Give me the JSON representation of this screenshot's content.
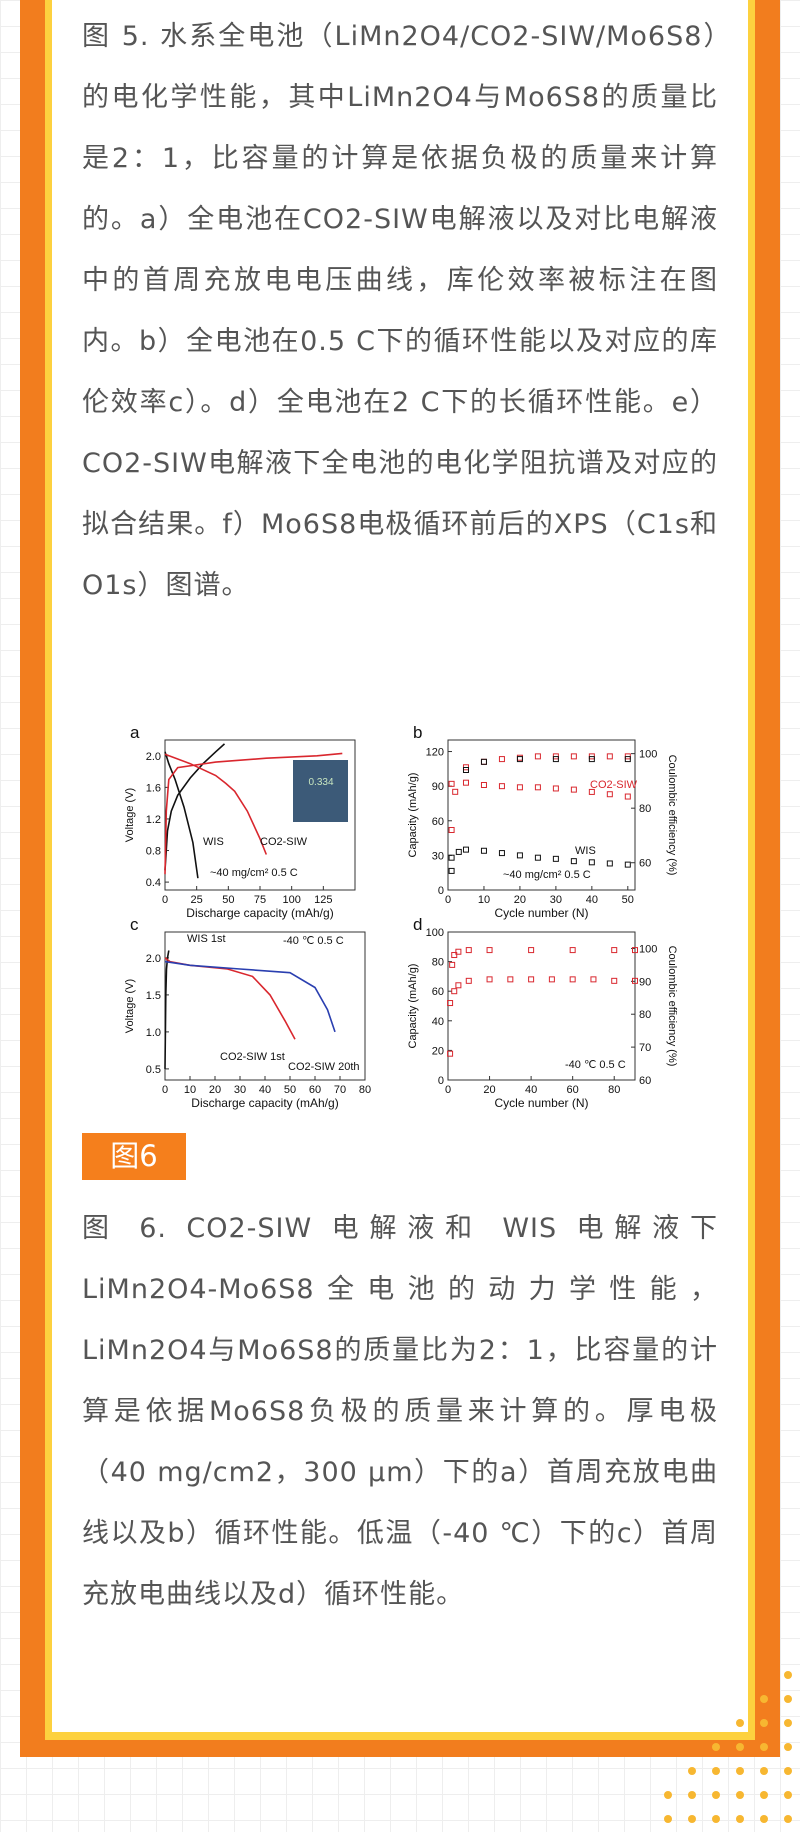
{
  "paragraphs": {
    "fig5_caption": "图 5. 水系全电池（LiMn2O4/CO2-SIW/Mo6S8）的电化学性能，其中LiMn2O4与Mo6S8的质量比是2：1，比容量的计算是依据负极的质量来计算的。a）全电池在CO2-SIW电解液以及对比电解液中的首周充放电电压曲线，库伦效率被标注在图内。b）全电池在0.5 C下的循环性能以及对应的库伦效率c）。d）全电池在2 C下的长循环性能。e）CO2-SIW电解液下全电池的电化学阻抗谱及对应的拟合结果。f）Mo6S8电极循环前后的XPS（C1s和O1s）图谱。",
    "fig6_caption": "图 6. CO2-SIW 电解液和 WIS 电解液下 LiMn2O4-Mo6S8全电池的动力学性能，LiMn2O4与Mo6S8的质量比为2：1，比容量的计算是依据Mo6S8负极的质量来计算的。厚电极（40 mg/cm2，300 μm）下的a）首周充放电曲线以及b）循环性能。低温（-40 ℃）下的c）首周充放电曲线以及d）循环性能。"
  },
  "figure_tag": "图6",
  "colors": {
    "orange": "#f27d1e",
    "yellow": "#fdd13f",
    "red_series": "#d9272e",
    "black_series": "#111111",
    "blue_series": "#2a3fb0"
  },
  "chart_data": [
    {
      "type": "line",
      "panel": "a",
      "xlabel": "Discharge capacity (mAh/g)",
      "ylabel": "Voltage (V)",
      "xlim": [
        0,
        150
      ],
      "ylim": [
        0.3,
        2.2
      ],
      "xticks": [
        "0",
        "25",
        "50",
        "75",
        "100",
        "125"
      ],
      "yticks": [
        "0.4",
        "0.8",
        "1.2",
        "1.6",
        "2.0"
      ],
      "series": [
        {
          "name": "WIS",
          "color": "black",
          "charge": {
            "x": [
              0,
              2,
              5,
              10,
              20,
              30,
              40,
              47
            ],
            "y": [
              0.55,
              1.05,
              1.3,
              1.5,
              1.72,
              1.9,
              2.05,
              2.15
            ]
          },
          "discharge": {
            "x": [
              0,
              3,
              8,
              15,
              22,
              26
            ],
            "y": [
              2.05,
              1.9,
              1.7,
              1.35,
              0.9,
              0.45
            ]
          }
        },
        {
          "name": "CO2-SIW",
          "color": "red",
          "charge": {
            "x": [
              0,
              1,
              3,
              10,
              40,
              80,
              120,
              140
            ],
            "y": [
              0.5,
              1.3,
              1.7,
              1.85,
              1.92,
              1.97,
              2.0,
              2.03
            ]
          },
          "discharge": {
            "x": [
              0,
              20,
              40,
              48,
              55,
              65,
              75,
              80
            ],
            "y": [
              2.02,
              1.9,
              1.75,
              1.65,
              1.55,
              1.3,
              0.95,
              0.75
            ]
          }
        }
      ],
      "labels": [
        "WIS",
        "CO2-SIW"
      ],
      "annotation": "~40 mg/cm² 0.5 C",
      "inset_text": "0.334"
    },
    {
      "type": "scatter",
      "panel": "b",
      "xlabel": "Cycle number (N)",
      "ylabel": "Capacity (mAh/g)",
      "y2label": "Coulombic efficiency (%)",
      "xlim": [
        0,
        52
      ],
      "ylim": [
        0,
        130
      ],
      "y2lim": [
        50,
        105
      ],
      "xticks": [
        "0",
        "10",
        "20",
        "30",
        "40",
        "50"
      ],
      "yticks": [
        "0",
        "30",
        "60",
        "90",
        "120"
      ],
      "y2ticks": [
        "60",
        "80",
        "100"
      ],
      "series": [
        {
          "name": "CO2-SIW",
          "axis": "capacity",
          "color": "red",
          "x": [
            1,
            5,
            10,
            15,
            20,
            25,
            30,
            35,
            40,
            45,
            50
          ],
          "y": [
            92,
            93,
            91,
            90,
            89,
            89,
            88,
            87,
            85,
            83,
            81
          ]
        },
        {
          "name": "CO2-SIW",
          "axis": "efficiency",
          "color": "red",
          "x": [
            1,
            2,
            5,
            10,
            15,
            20,
            25,
            30,
            35,
            40,
            45,
            50
          ],
          "y": [
            72,
            86,
            95,
            97,
            98,
            98.5,
            99,
            99,
            99,
            99,
            99,
            99
          ]
        },
        {
          "name": "WIS",
          "axis": "capacity",
          "color": "black",
          "x": [
            1,
            3,
            5,
            10,
            15,
            20,
            25,
            30,
            35,
            40,
            45,
            50
          ],
          "y": [
            28,
            33,
            35,
            34,
            32,
            30,
            28,
            27,
            25,
            24,
            23,
            22
          ]
        },
        {
          "name": "WIS",
          "axis": "efficiency",
          "color": "black",
          "x": [
            1,
            5,
            10,
            20,
            30,
            40,
            50
          ],
          "y": [
            57,
            94,
            97,
            98,
            98,
            98,
            98
          ]
        }
      ],
      "labels": [
        "CO2-SIW",
        "WIS"
      ],
      "annotation": "~40 mg/cm² 0.5 C"
    },
    {
      "type": "line",
      "panel": "c",
      "xlabel": "Discharge capacity (mAh/g)",
      "ylabel": "Voltage (V)",
      "xlim": [
        0,
        80
      ],
      "ylim": [
        0.35,
        2.35
      ],
      "xticks": [
        "0",
        "10",
        "20",
        "30",
        "40",
        "50",
        "60",
        "70",
        "80"
      ],
      "yticks": [
        "0.5",
        "1.0",
        "1.5",
        "2.0"
      ],
      "series": [
        {
          "name": "WIS 1st",
          "color": "black",
          "x": [
            0,
            0.3,
            0.6,
            1,
            1.5
          ],
          "y": [
            0.5,
            1.5,
            1.85,
            2.0,
            2.1
          ]
        },
        {
          "name": "CO2-SIW 1st",
          "color": "red",
          "x": [
            0,
            2,
            10,
            25,
            35,
            42,
            48,
            52
          ],
          "y": [
            2.0,
            1.95,
            1.9,
            1.85,
            1.75,
            1.5,
            1.15,
            0.9
          ]
        },
        {
          "name": "CO2-SIW 20th",
          "color": "blue",
          "x": [
            0,
            10,
            30,
            50,
            60,
            65,
            68
          ],
          "y": [
            1.95,
            1.9,
            1.85,
            1.8,
            1.6,
            1.3,
            1.0
          ]
        }
      ],
      "labels": [
        "WIS 1st",
        "CO2-SIW 1st",
        "CO2-SIW 20th"
      ],
      "annotation": "-40 ℃ 0.5 C"
    },
    {
      "type": "scatter",
      "panel": "d",
      "xlabel": "Cycle number (N)",
      "ylabel": "Capacity (mAh/g)",
      "y2label": "Coulombic efficiency (%)",
      "xlim": [
        0,
        90
      ],
      "ylim": [
        0,
        100
      ],
      "y2lim": [
        60,
        105
      ],
      "xticks": [
        "0",
        "20",
        "40",
        "60",
        "80"
      ],
      "yticks": [
        "0",
        "20",
        "40",
        "60",
        "80",
        "100"
      ],
      "y2ticks": [
        "60",
        "70",
        "80",
        "90",
        "100"
      ],
      "series": [
        {
          "name": "CO2-SIW",
          "axis": "capacity",
          "color": "red",
          "x": [
            1,
            3,
            5,
            10,
            20,
            30,
            40,
            50,
            60,
            70,
            80,
            90
          ],
          "y": [
            52,
            60,
            64,
            67,
            68,
            68,
            68,
            68,
            68,
            68,
            67,
            67
          ]
        },
        {
          "name": "CO2-SIW",
          "axis": "efficiency",
          "color": "red",
          "x": [
            1,
            2,
            3,
            5,
            10,
            20,
            40,
            60,
            80,
            90
          ],
          "y": [
            68,
            95,
            98,
            99,
            99.5,
            99.5,
            99.5,
            99.5,
            99.5,
            99.5
          ]
        }
      ],
      "annotation": "-40 ℃ 0.5 C"
    }
  ],
  "panel_letters": [
    "a",
    "b",
    "c",
    "d"
  ]
}
